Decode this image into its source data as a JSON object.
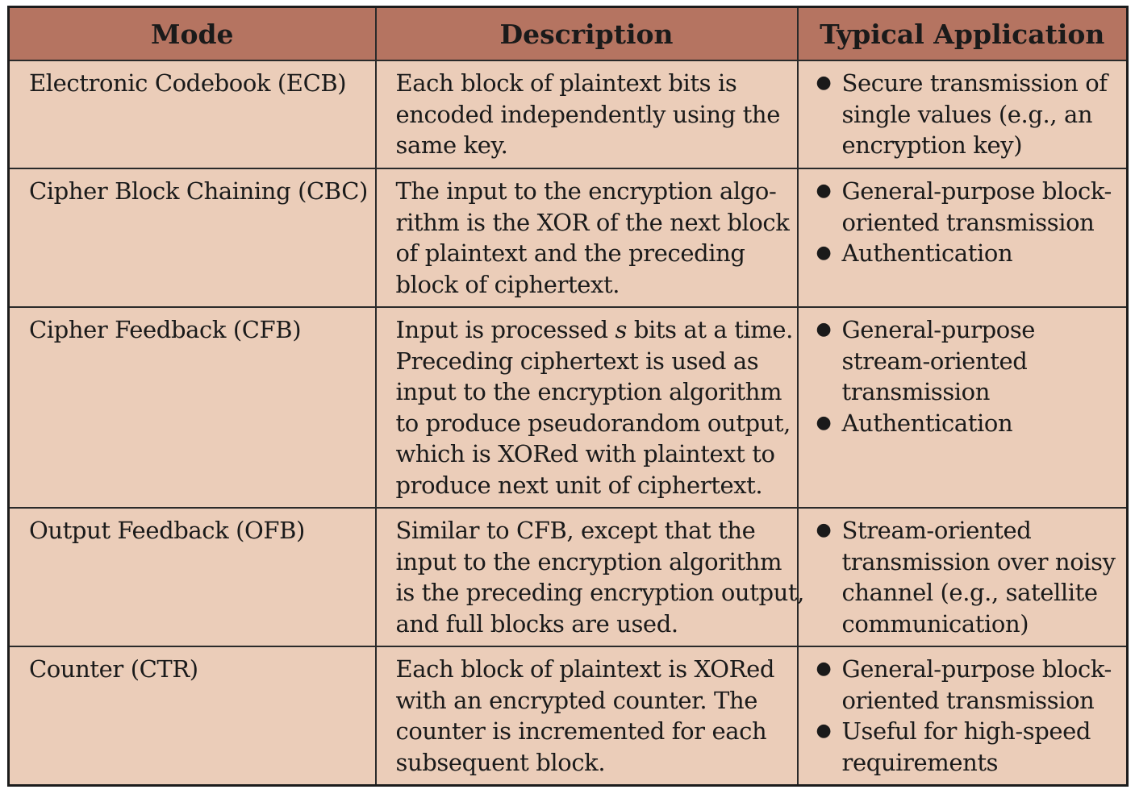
{
  "table": {
    "headers": [
      "Mode",
      "Description",
      "Typical Application"
    ],
    "rows": [
      {
        "mode": "Electronic Codebook (ECB)",
        "description": [
          "Each block of plaintext bits is",
          "encoded independently using the",
          "same key."
        ],
        "applications": [
          [
            "Secure transmission of",
            "single values (e.g., an",
            "encryption key)"
          ]
        ]
      },
      {
        "mode": "Cipher Block Chaining (CBC)",
        "description": [
          "The input to the encryption algo-",
          "rithm is the XOR of the next block",
          "of plaintext and the preceding",
          "block of ciphertext."
        ],
        "applications": [
          [
            "General-purpose block-",
            "oriented transmission"
          ],
          [
            "Authentication"
          ]
        ]
      },
      {
        "mode": "Cipher Feedback (CFB)",
        "description": [
          "Input is processed s bits at a time.",
          "Preceding ciphertext is used as",
          "input to the encryption algorithm",
          "to produce pseudorandom output,",
          "which is XORed with plaintext to",
          "produce next unit of ciphertext."
        ],
        "applications": [
          [
            "General-purpose",
            "stream-oriented",
            "transmission"
          ],
          [
            "Authentication"
          ]
        ]
      },
      {
        "mode": "Output Feedback (OFB)",
        "description": [
          "Similar to CFB, except that the",
          "input to the encryption algorithm",
          "is the preceding encryption output,",
          "and full blocks are used."
        ],
        "applications": [
          [
            "Stream-oriented",
            "transmission over noisy",
            "channel (e.g., satellite",
            "communication)"
          ]
        ]
      },
      {
        "mode": "Counter (CTR)",
        "description": [
          "Each block of plaintext is XORed",
          "with an encrypted counter. The",
          "counter is incremented for each",
          "subsequent block."
        ],
        "applications": [
          [
            "General-purpose block-",
            "oriented transmission"
          ],
          [
            "Useful for high-speed",
            "requirements"
          ]
        ]
      }
    ]
  },
  "colors": {
    "header_bg": "#b57461",
    "cell_bg": "#ebcdb9",
    "border": "#1c1c1c"
  }
}
